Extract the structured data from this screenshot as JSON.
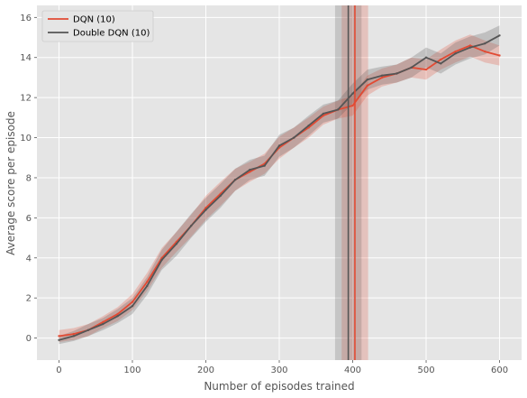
{
  "chart_data": {
    "type": "line",
    "xlabel": "Number of episodes trained",
    "ylabel": "Average score per episode",
    "xlim": [
      -30,
      630
    ],
    "ylim": [
      -1.1,
      16.6
    ],
    "xticks": [
      0,
      100,
      200,
      300,
      400,
      500,
      600
    ],
    "yticks": [
      0,
      2,
      4,
      6,
      8,
      10,
      12,
      14,
      16
    ],
    "grid": true,
    "legend_position": "top-left",
    "background": "#e5e5e5",
    "series": [
      {
        "name": "DQN (10)",
        "color": "#e24a33",
        "x": [
          0,
          20,
          40,
          60,
          80,
          100,
          120,
          140,
          160,
          180,
          200,
          220,
          240,
          260,
          280,
          300,
          320,
          340,
          360,
          380,
          400,
          420,
          440,
          460,
          480,
          500,
          520,
          540,
          560,
          580,
          600
        ],
        "values": [
          0.1,
          0.2,
          0.4,
          0.8,
          1.2,
          1.8,
          2.8,
          4.0,
          4.8,
          5.6,
          6.5,
          7.2,
          7.9,
          8.3,
          8.7,
          9.5,
          10.0,
          10.5,
          11.1,
          11.4,
          11.6,
          12.6,
          13.0,
          13.2,
          13.5,
          13.4,
          13.9,
          14.3,
          14.6,
          14.3,
          14.1
        ],
        "band": [
          0.3,
          0.3,
          0.3,
          0.3,
          0.35,
          0.4,
          0.45,
          0.5,
          0.5,
          0.55,
          0.6,
          0.6,
          0.55,
          0.5,
          0.5,
          0.55,
          0.5,
          0.5,
          0.45,
          0.45,
          0.5,
          0.5,
          0.45,
          0.45,
          0.5,
          0.5,
          0.5,
          0.55,
          0.55,
          0.55,
          0.5
        ],
        "vline_mean": 403,
        "vline_band": [
          385,
          421
        ]
      },
      {
        "name": "Double DQN (10)",
        "color": "#555555",
        "x": [
          0,
          20,
          40,
          60,
          80,
          100,
          120,
          140,
          160,
          180,
          200,
          220,
          240,
          260,
          280,
          300,
          320,
          340,
          360,
          380,
          400,
          420,
          440,
          460,
          480,
          500,
          520,
          540,
          560,
          580,
          600
        ],
        "values": [
          -0.1,
          0.1,
          0.4,
          0.7,
          1.1,
          1.6,
          2.6,
          3.9,
          4.7,
          5.6,
          6.4,
          7.1,
          7.9,
          8.4,
          8.6,
          9.6,
          10.0,
          10.6,
          11.2,
          11.4,
          12.2,
          12.9,
          13.1,
          13.2,
          13.5,
          14.0,
          13.7,
          14.2,
          14.5,
          14.7,
          15.1
        ],
        "band": [
          0.2,
          0.25,
          0.3,
          0.3,
          0.35,
          0.4,
          0.45,
          0.5,
          0.6,
          0.6,
          0.6,
          0.6,
          0.55,
          0.5,
          0.5,
          0.55,
          0.5,
          0.5,
          0.45,
          0.45,
          0.5,
          0.5,
          0.45,
          0.45,
          0.5,
          0.5,
          0.5,
          0.55,
          0.55,
          0.55,
          0.5
        ],
        "vline_mean": 394,
        "vline_band": [
          376,
          412
        ]
      }
    ]
  }
}
